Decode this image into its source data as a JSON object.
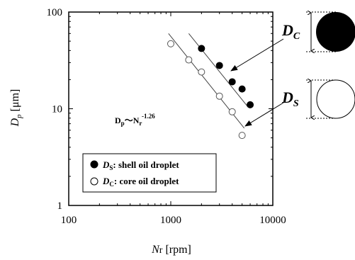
{
  "chart_data": {
    "type": "scatter",
    "x_scale": "log",
    "y_scale": "log",
    "xlim": [
      100,
      10000
    ],
    "ylim": [
      1,
      100
    ],
    "x_ticks": [
      "100",
      "1000",
      "10000"
    ],
    "y_ticks": [
      "1",
      "10",
      "100"
    ],
    "xlabel": {
      "var": "N",
      "sub": "r",
      "unit": " [rpm]"
    },
    "ylabel": {
      "var": "D",
      "sub": "p",
      "unit": " [μm]"
    },
    "annotation": {
      "base": "D",
      "base_sub": "p",
      "tilde": "〜",
      "var": "N",
      "var_sub": "r",
      "exponent": "-1.26"
    },
    "grid": false,
    "legend_position": "lower-left",
    "series": [
      {
        "name": "shell oil droplet",
        "symbol": "D",
        "symbol_sub": "S",
        "marker": "filled-circle",
        "x": [
          2000,
          3000,
          4000,
          5000,
          6000
        ],
        "y": [
          42,
          28,
          19,
          16,
          11
        ],
        "fit": {
          "x": [
            1500,
            5600
          ],
          "y": [
            60,
            10.7
          ]
        }
      },
      {
        "name": "core oil droplet",
        "symbol": "D",
        "symbol_sub": "C",
        "marker": "open-circle",
        "x": [
          1000,
          1500,
          2000,
          3000,
          4000,
          5000
        ],
        "y": [
          47,
          32,
          24,
          13.5,
          9.3,
          5.3
        ],
        "fit": {
          "x": [
            950,
            5250
          ],
          "y": [
            60,
            6.3
          ]
        }
      }
    ],
    "side_labels": [
      {
        "base": "D",
        "sub": "C"
      },
      {
        "base": "D",
        "sub": "S"
      }
    ],
    "colors": {
      "ink": "#000000",
      "line": "#444444",
      "background": "#ffffff"
    }
  }
}
